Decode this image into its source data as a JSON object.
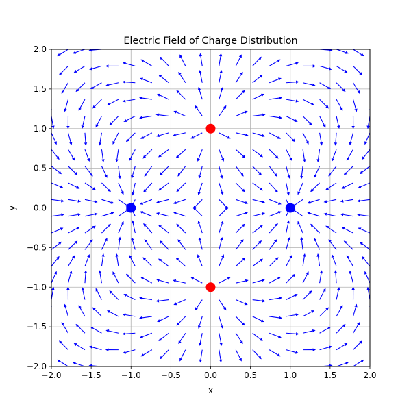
{
  "chart_data": {
    "type": "quiver",
    "title": "Electric Field of Charge Distribution",
    "xlabel": "x",
    "ylabel": "y",
    "xlim": [
      -2.0,
      2.0
    ],
    "ylim": [
      -2.0,
      2.0
    ],
    "xticks": [
      -2.0,
      -1.5,
      -1.0,
      -0.5,
      0.0,
      0.5,
      1.0,
      1.5,
      2.0
    ],
    "yticks": [
      -2.0,
      -1.5,
      -1.0,
      -0.5,
      0.0,
      0.5,
      1.0,
      1.5,
      2.0
    ],
    "xtick_labels": [
      "−2.0",
      "−1.5",
      "−1.0",
      "−0.5",
      "0.0",
      "0.5",
      "1.0",
      "1.5",
      "2.0"
    ],
    "ytick_labels": [
      "−2.0",
      "−1.5",
      "−1.0",
      "−0.5",
      "0.0",
      "0.5",
      "1.0",
      "1.5",
      "2.0"
    ],
    "grid": true,
    "vector_grid": {
      "start": -2.0,
      "end": 2.0,
      "count": 20
    },
    "arrow_color": "#0000ff",
    "charges": [
      {
        "x": 0.0,
        "y": 1.0,
        "sign": "positive",
        "color": "#ff0000"
      },
      {
        "x": 0.0,
        "y": -1.0,
        "sign": "positive",
        "color": "#ff0000"
      },
      {
        "x": -1.0,
        "y": 0.0,
        "sign": "negative",
        "color": "#0000ff"
      },
      {
        "x": 1.0,
        "y": 0.0,
        "sign": "negative",
        "color": "#0000ff"
      }
    ]
  }
}
